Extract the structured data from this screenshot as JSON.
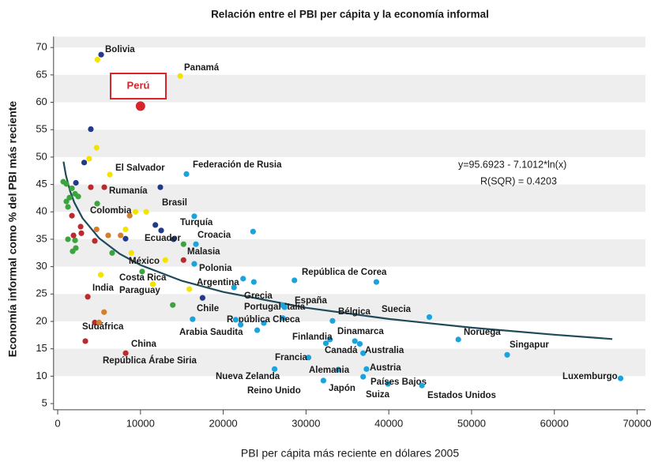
{
  "chart_data": {
    "type": "scatter",
    "title": "Relación entre el PBI per cápita y la economía informal",
    "x_label": "PBI per cápita más reciente en dólares 2005",
    "y_label": "Economía informal como % del PBI más reciente",
    "xlim": [
      -500,
      71000
    ],
    "ylim": [
      3,
      72
    ],
    "xticks": [
      0,
      10000,
      20000,
      30000,
      40000,
      50000,
      60000,
      70000
    ],
    "yticks": [
      5,
      10,
      15,
      20,
      25,
      30,
      35,
      40,
      45,
      50,
      55,
      60,
      65,
      70
    ],
    "grid": true,
    "series": [
      {
        "color": "#1ba3dc",
        "x": [
          15550,
          16500,
          16700,
          16500,
          38500,
          28600,
          21300,
          22400,
          23700,
          27100,
          27400,
          27200,
          24900,
          21500,
          22100,
          24100,
          16300,
          23600,
          33200,
          44900,
          48400,
          54300,
          68000,
          35900,
          32900,
          32400,
          36900,
          30300,
          37300,
          33900,
          26200,
          39900,
          32100,
          36500,
          36900,
          44000
        ],
        "values": [
          46.9,
          39.2,
          34.1,
          30.5,
          27.2,
          27.5,
          26.2,
          27.8,
          27.2,
          23.0,
          22.6,
          20.6,
          19.7,
          20.3,
          19.4,
          18.4,
          20.4,
          36.4,
          20.1,
          20.8,
          16.7,
          13.9,
          9.6,
          16.4,
          16.7,
          16.0,
          14.2,
          13.4,
          11.3,
          11.2,
          11.3,
          8.6,
          9.2,
          15.9,
          9.9,
          8.3
        ],
        "labels": [
          "Federación de Rusia",
          "Turquía",
          "Croacia",
          "Polonia",
          "República de Corea",
          "Italia",
          "Argentina",
          null,
          null,
          "Grecia",
          "Portugal",
          "España",
          "República Checa",
          null,
          null,
          null,
          "Arabia Saudita",
          null,
          "Bélgica",
          "Suecia",
          "Noruega",
          "Singapur",
          "Luxemburgo",
          "Dinamarca",
          "Finlandia",
          "Canadá",
          "Australia",
          "Francia",
          "Austria",
          "Alemania",
          "Nueva Zelanda",
          "Países Bajos",
          "Japón",
          "Reino Unido",
          "Suiza",
          "Estados Unidos"
        ]
      },
      {
        "color": "#233a8c",
        "x": [
          5250,
          4000,
          3200,
          2200,
          12400,
          11800,
          12500,
          8200,
          14000,
          17500
        ],
        "values": [
          68.7,
          55.1,
          49.0,
          45.3,
          44.5,
          37.6,
          36.6,
          35.1,
          35.0,
          24.3
        ],
        "labels": [
          "Bolivia",
          null,
          null,
          null,
          null,
          null,
          null,
          null,
          "Ecuador",
          "Chile"
        ]
      },
      {
        "color": "#f3e300",
        "x": [
          14800,
          4800,
          4700,
          3800,
          6300,
          9400,
          10700,
          8200,
          8900,
          13000,
          5200,
          11500,
          15900
        ],
        "values": [
          64.8,
          67.8,
          51.7,
          49.7,
          46.8,
          40.0,
          40.0,
          36.8,
          32.5,
          31.2,
          28.5,
          26.8,
          25.9
        ],
        "labels": [
          "Panamá",
          null,
          null,
          null,
          "El Salvador",
          "Colombia",
          "Brasil",
          null,
          null,
          "México",
          "Costa Rica",
          "Paraguay",
          null
        ]
      },
      {
        "color": "#3aa53e",
        "x": [
          670,
          1050,
          1050,
          1240,
          1430,
          1720,
          2100,
          2480,
          1240,
          2100,
          1810,
          2190,
          4770,
          6580,
          10200,
          13900,
          15200
        ],
        "values": [
          45.5,
          45.1,
          41.9,
          40.9,
          42.6,
          44.3,
          43.3,
          42.8,
          35.0,
          34.8,
          32.8,
          33.4,
          41.5,
          32.5,
          29.1,
          23.0,
          34.1
        ],
        "labels": [
          null,
          null,
          null,
          null,
          null,
          null,
          null,
          null,
          null,
          null,
          null,
          null,
          null,
          null,
          null,
          null,
          "Malasia"
        ]
      },
      {
        "color": "#b92b2f",
        "x": [
          1720,
          4000,
          5630,
          2770,
          2860,
          1910,
          4480,
          3630,
          4480,
          8210,
          3340,
          15200
        ],
        "values": [
          39.3,
          44.5,
          44.5,
          37.3,
          36.1,
          35.7,
          34.7,
          24.5,
          19.8,
          14.2,
          16.4,
          31.2
        ],
        "labels": [
          null,
          null,
          "Rumanía",
          null,
          null,
          null,
          null,
          "India",
          "Sudáfrica",
          "China",
          "República Árabe Siria",
          null
        ]
      },
      {
        "color": "#d57f2d",
        "x": [
          8700,
          4700,
          6100,
          7600,
          5600,
          5000
        ],
        "values": [
          39.3,
          36.8,
          35.7,
          35.7,
          21.7,
          19.8
        ],
        "labels": [
          null,
          null,
          null,
          null,
          null,
          null
        ]
      }
    ],
    "highlight": {
      "label": "Perú",
      "x": 10000,
      "value": 59.3,
      "color": "#d7262b"
    },
    "trendline": {
      "color": "#1e4a5a",
      "x": [
        700,
        1000,
        1500,
        2000,
        3000,
        5000,
        7500,
        10000,
        15000,
        20000,
        30000,
        40000,
        50000,
        60000,
        67000
      ],
      "values": [
        49.17,
        46.64,
        43.76,
        41.72,
        38.84,
        35.21,
        32.33,
        30.29,
        27.41,
        25.37,
        22.49,
        20.44,
        18.86,
        17.57,
        16.78
      ]
    },
    "annotations": [
      "y=95.6923 - 7.1012*ln(x)",
      "R(SQR) = 0.4203"
    ]
  }
}
